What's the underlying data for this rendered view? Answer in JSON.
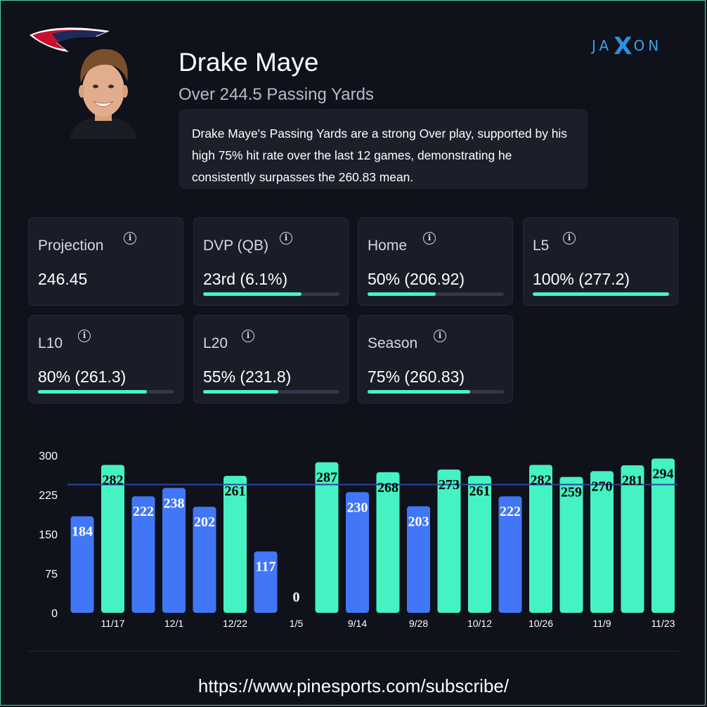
{
  "header": {
    "brand": {
      "left": "JA",
      "mid": "X",
      "right": "ON"
    },
    "player_name": "Drake Maye",
    "prop_line": "Over 244.5 Passing Yards",
    "summary": "Drake Maye's Passing Yards are a strong Over play, supported by his high 75% hit rate over the last 12 games, demonstrating he consistently surpasses the 260.83 mean."
  },
  "icons": {
    "team_logo": "team-logo-icon",
    "info": "info-icon"
  },
  "colors": {
    "over": "#45f2c3",
    "under": "#4176f7",
    "line": "#2b45a0",
    "background": "#0f111b",
    "accent": "#36a6e8"
  },
  "stats": [
    {
      "label": "Projection",
      "value": "246.45"
    },
    {
      "label": "DVP (QB)",
      "value": "23rd (6.1%)",
      "fill": 0.72
    },
    {
      "label": "Home",
      "value": "50% (206.92)",
      "fill": 0.5
    },
    {
      "label": "L5",
      "value": "100% (277.2)",
      "fill": 1.0
    },
    {
      "label": "L10",
      "value": "80% (261.3)",
      "fill": 0.8
    },
    {
      "label": "L20",
      "value": "55% (231.8)",
      "fill": 0.55
    },
    {
      "label": "Season",
      "value": "75% (260.83)",
      "fill": 0.75
    }
  ],
  "chart_data": {
    "type": "bar",
    "categories": [
      "",
      "11/17",
      "",
      "12/1",
      "",
      "12/22",
      "",
      "1/5",
      "",
      "9/14",
      "",
      "9/28",
      "",
      "10/12",
      "",
      "10/26",
      "",
      "11/9",
      "",
      "11/23"
    ],
    "values": [
      184,
      282,
      222,
      238,
      202,
      261,
      117,
      0,
      287,
      230,
      268,
      203,
      273,
      261,
      222,
      282,
      259,
      270,
      281,
      294
    ],
    "line_value": 244.5,
    "ylim": [
      0,
      300
    ],
    "yticks": [
      0,
      75,
      150,
      225,
      300
    ],
    "grid": false
  },
  "footer": {
    "url": "https://www.pinesports.com/subscribe/"
  }
}
